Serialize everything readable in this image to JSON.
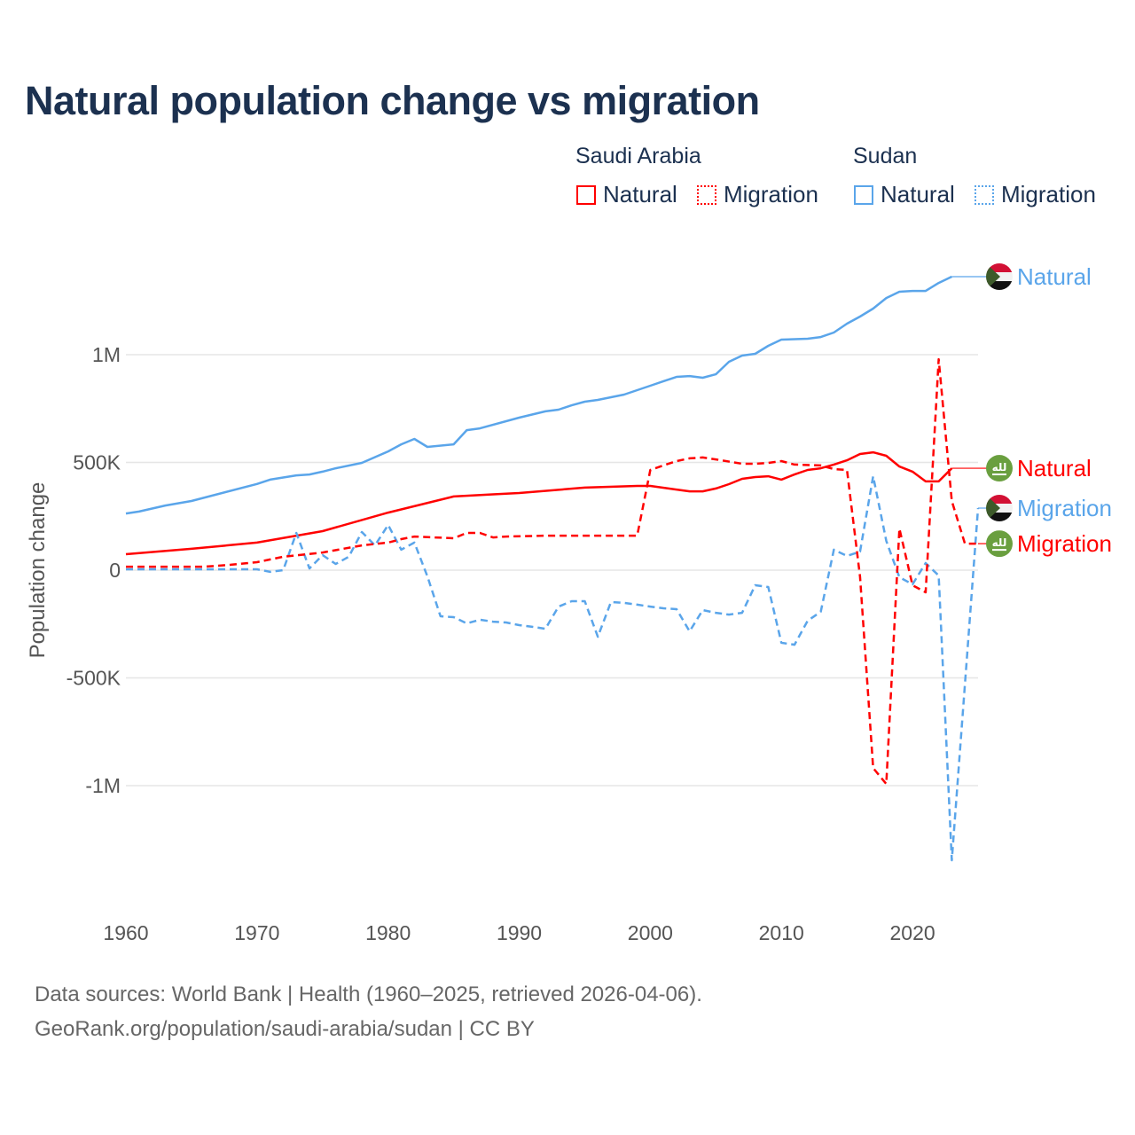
{
  "title": "Natural population change vs migration",
  "legend": {
    "groups": [
      {
        "label": "Saudi Arabia",
        "items": [
          "Natural",
          "Migration"
        ],
        "color": "#ff0000"
      },
      {
        "label": "Sudan",
        "items": [
          "Natural",
          "Migration"
        ],
        "color": "#5aa5ea"
      }
    ]
  },
  "footer": {
    "line1": "Data sources: World Bank | Health (1960–2025, retrieved 2026-04-06).",
    "line2": "GeoRank.org/population/saudi-arabia/sudan | CC BY"
  },
  "chart_data": {
    "type": "line",
    "title": "Natural population change vs migration",
    "xlabel": "",
    "ylabel": "Population change",
    "xlim": [
      1960,
      2025
    ],
    "ylim": [
      -1400000,
      1400000
    ],
    "x_ticks": [
      1960,
      1970,
      1980,
      1990,
      2000,
      2010,
      2020
    ],
    "x_tick_labels": [
      "1960",
      "1970",
      "1980",
      "1990",
      "2000",
      "2010",
      "2020"
    ],
    "y_ticks": [
      1000000,
      500000,
      0,
      -500000,
      -1000000
    ],
    "y_tick_labels": [
      "1M",
      "500K",
      "0",
      "-500K",
      "-1M"
    ],
    "grid": true,
    "legend_placement": "top-right",
    "series": [
      {
        "name": "Sudan Natural",
        "country": "Sudan",
        "label": "Natural",
        "color": "#5aa5ea",
        "dashed": false,
        "flag": "sudan",
        "points": [
          [
            1960,
            263000
          ],
          [
            1961,
            272000
          ],
          [
            1963,
            300000
          ],
          [
            1965,
            321000
          ],
          [
            1970,
            400000
          ],
          [
            1971,
            420000
          ],
          [
            1973,
            440000
          ],
          [
            1974,
            444000
          ],
          [
            1975,
            457000
          ],
          [
            1976,
            473000
          ],
          [
            1978,
            498000
          ],
          [
            1980,
            551000
          ],
          [
            1981,
            584000
          ],
          [
            1982,
            609000
          ],
          [
            1983,
            572000
          ],
          [
            1985,
            584000
          ],
          [
            1986,
            650000
          ],
          [
            1987,
            658000
          ],
          [
            1990,
            708000
          ],
          [
            1992,
            737000
          ],
          [
            1993,
            745000
          ],
          [
            1994,
            765000
          ],
          [
            1995,
            782000
          ],
          [
            1996,
            790000
          ],
          [
            1998,
            815000
          ],
          [
            2000,
            856000
          ],
          [
            2001,
            877000
          ],
          [
            2002,
            897000
          ],
          [
            2003,
            901000
          ],
          [
            2004,
            893000
          ],
          [
            2005,
            909000
          ],
          [
            2006,
            967000
          ],
          [
            2007,
            996000
          ],
          [
            2008,
            1004000
          ],
          [
            2009,
            1041000
          ],
          [
            2010,
            1070000
          ],
          [
            2012,
            1074000
          ],
          [
            2013,
            1082000
          ],
          [
            2014,
            1103000
          ],
          [
            2015,
            1144000
          ],
          [
            2016,
            1177000
          ],
          [
            2017,
            1214000
          ],
          [
            2018,
            1263000
          ],
          [
            2019,
            1292000
          ],
          [
            2020,
            1296000
          ],
          [
            2021,
            1296000
          ],
          [
            2022,
            1333000
          ],
          [
            2023,
            1362000
          ]
        ]
      },
      {
        "name": "Saudi Arabia Natural",
        "country": "Saudi Arabia",
        "label": "Natural",
        "color": "#ff0000",
        "dashed": false,
        "flag": "saudi",
        "points": [
          [
            1960,
            74000
          ],
          [
            1965,
            99000
          ],
          [
            1970,
            128000
          ],
          [
            1975,
            181000
          ],
          [
            1980,
            267000
          ],
          [
            1985,
            342000
          ],
          [
            1988,
            352000
          ],
          [
            1990,
            358000
          ],
          [
            1995,
            383000
          ],
          [
            1999,
            391000
          ],
          [
            2000,
            391000
          ],
          [
            2002,
            374000
          ],
          [
            2003,
            366000
          ],
          [
            2004,
            366000
          ],
          [
            2005,
            379000
          ],
          [
            2006,
            399000
          ],
          [
            2007,
            424000
          ],
          [
            2008,
            432000
          ],
          [
            2009,
            436000
          ],
          [
            2010,
            420000
          ],
          [
            2011,
            444000
          ],
          [
            2012,
            465000
          ],
          [
            2013,
            473000
          ],
          [
            2014,
            490000
          ],
          [
            2015,
            510000
          ],
          [
            2016,
            539000
          ],
          [
            2017,
            547000
          ],
          [
            2018,
            531000
          ],
          [
            2019,
            481000
          ],
          [
            2020,
            457000
          ],
          [
            2021,
            412000
          ],
          [
            2022,
            412000
          ],
          [
            2023,
            473000
          ]
        ]
      },
      {
        "name": "Sudan Migration",
        "country": "Sudan",
        "label": "Migration",
        "color": "#5aa5ea",
        "dashed": true,
        "flag": "sudan",
        "points": [
          [
            1960,
            4000
          ],
          [
            1970,
            4000
          ],
          [
            1971,
            -8000
          ],
          [
            1972,
            0
          ],
          [
            1973,
            173000
          ],
          [
            1974,
            8000
          ],
          [
            1975,
            70000
          ],
          [
            1976,
            29000
          ],
          [
            1977,
            62000
          ],
          [
            1978,
            177000
          ],
          [
            1979,
            115000
          ],
          [
            1980,
            210000
          ],
          [
            1981,
            95000
          ],
          [
            1982,
            128000
          ],
          [
            1983,
            -29000
          ],
          [
            1984,
            -214000
          ],
          [
            1985,
            -218000
          ],
          [
            1986,
            -247000
          ],
          [
            1987,
            -230000
          ],
          [
            1988,
            -239000
          ],
          [
            1989,
            -243000
          ],
          [
            1990,
            -255000
          ],
          [
            1991,
            -263000
          ],
          [
            1992,
            -272000
          ],
          [
            1993,
            -169000
          ],
          [
            1994,
            -144000
          ],
          [
            1995,
            -144000
          ],
          [
            1996,
            -309000
          ],
          [
            1997,
            -148000
          ],
          [
            1998,
            -152000
          ],
          [
            1999,
            -160000
          ],
          [
            2000,
            -169000
          ],
          [
            2001,
            -177000
          ],
          [
            2002,
            -181000
          ],
          [
            2003,
            -284000
          ],
          [
            2004,
            -185000
          ],
          [
            2005,
            -198000
          ],
          [
            2006,
            -206000
          ],
          [
            2007,
            -198000
          ],
          [
            2008,
            -70000
          ],
          [
            2009,
            -78000
          ],
          [
            2010,
            -337000
          ],
          [
            2011,
            -346000
          ],
          [
            2012,
            -235000
          ],
          [
            2013,
            -193000
          ],
          [
            2014,
            95000
          ],
          [
            2015,
            66000
          ],
          [
            2016,
            86000
          ],
          [
            2017,
            436000
          ],
          [
            2018,
            136000
          ],
          [
            2019,
            -33000
          ],
          [
            2020,
            -66000
          ],
          [
            2021,
            33000
          ],
          [
            2022,
            -25000
          ],
          [
            2023,
            -1346000
          ],
          [
            2024,
            -530000
          ],
          [
            2025,
            288000
          ]
        ]
      },
      {
        "name": "Saudi Arabia Migration",
        "country": "Saudi Arabia",
        "label": "Migration",
        "color": "#ff0000",
        "dashed": true,
        "flag": "saudi",
        "points": [
          [
            1960,
            16000
          ],
          [
            1966,
            16000
          ],
          [
            1968,
            25000
          ],
          [
            1970,
            37000
          ],
          [
            1972,
            62000
          ],
          [
            1975,
            82000
          ],
          [
            1978,
            115000
          ],
          [
            1980,
            128000
          ],
          [
            1981,
            144000
          ],
          [
            1982,
            156000
          ],
          [
            1985,
            148000
          ],
          [
            1986,
            173000
          ],
          [
            1987,
            173000
          ],
          [
            1988,
            152000
          ],
          [
            1989,
            156000
          ],
          [
            1992,
            160000
          ],
          [
            1999,
            160000
          ],
          [
            2000,
            465000
          ],
          [
            2001,
            486000
          ],
          [
            2002,
            506000
          ],
          [
            2003,
            519000
          ],
          [
            2004,
            523000
          ],
          [
            2005,
            514000
          ],
          [
            2007,
            494000
          ],
          [
            2008,
            494000
          ],
          [
            2009,
            498000
          ],
          [
            2010,
            506000
          ],
          [
            2011,
            490000
          ],
          [
            2013,
            486000
          ],
          [
            2014,
            469000
          ],
          [
            2015,
            465000
          ],
          [
            2016,
            -30000
          ],
          [
            2017,
            -918000
          ],
          [
            2018,
            -992000
          ],
          [
            2019,
            193000
          ],
          [
            2020,
            -70000
          ],
          [
            2021,
            -103000
          ],
          [
            2022,
            979000
          ],
          [
            2023,
            321000
          ],
          [
            2024,
            123000
          ],
          [
            2025,
            123000
          ]
        ]
      }
    ]
  }
}
